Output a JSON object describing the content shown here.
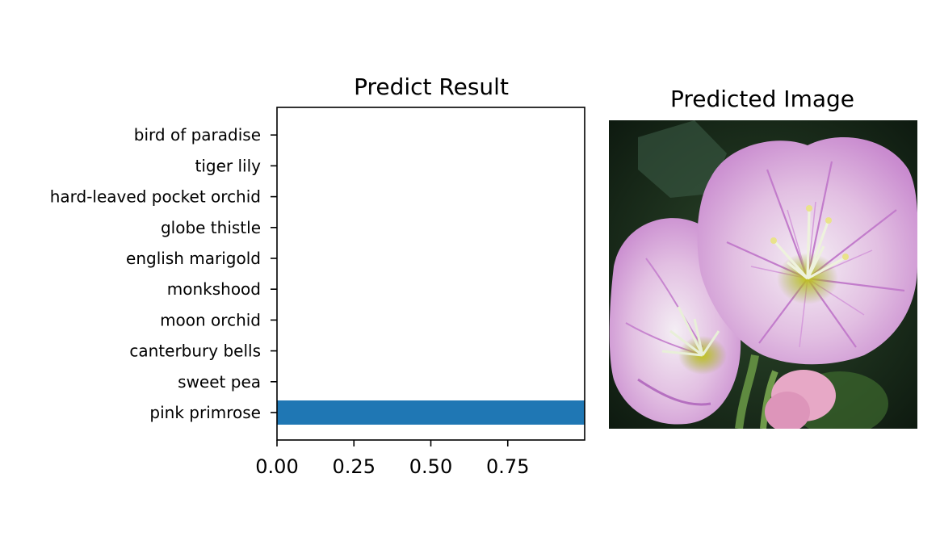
{
  "chart_data": [
    {
      "type": "bar",
      "orientation": "horizontal",
      "title": "Predict Result",
      "categories": [
        "pink primrose",
        "sweet pea",
        "canterbury bells",
        "moon orchid",
        "monkshood",
        "english marigold",
        "globe thistle",
        "hard-leaved pocket orchid",
        "tiger lily",
        "bird of paradise"
      ],
      "values": [
        1.0,
        0,
        0,
        0,
        0,
        0,
        0,
        0,
        0,
        0
      ],
      "xlim": [
        0,
        1.0
      ],
      "xticks": [
        0.0,
        0.25,
        0.5,
        0.75
      ],
      "xtick_labels": [
        "0.00",
        "0.25",
        "0.50",
        "0.75"
      ],
      "xlabel": "",
      "ylabel": "",
      "bar_color": "#1f77b4",
      "grid": false
    }
  ],
  "image_panel": {
    "title": "Predicted Image",
    "description_icon": "flower-photo"
  }
}
